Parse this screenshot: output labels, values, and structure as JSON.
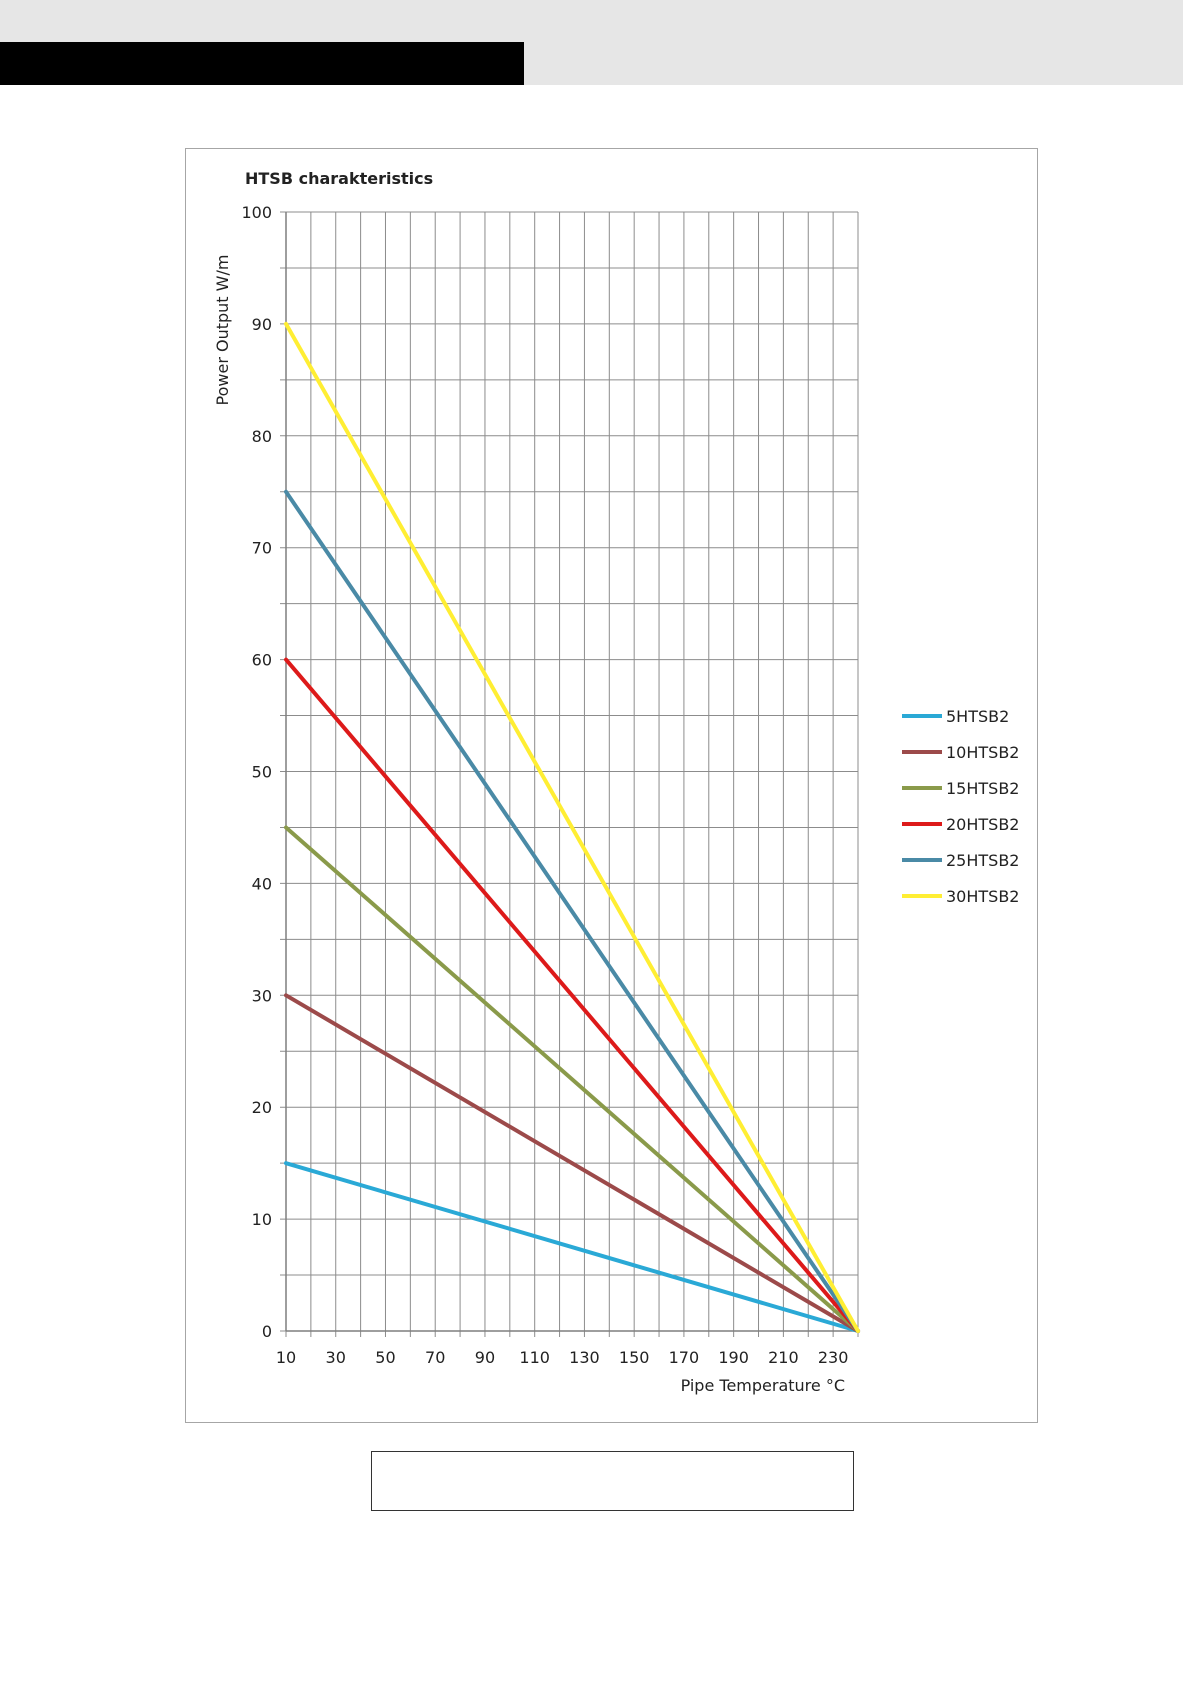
{
  "chart_data": {
    "type": "line",
    "title": "HTSB charakteristics",
    "xlabel": "Pipe Temperature °C",
    "ylabel": "Power Output W/m",
    "xlim": [
      10,
      240
    ],
    "ylim": [
      0,
      100
    ],
    "x_ticks": [
      10,
      30,
      50,
      70,
      90,
      110,
      130,
      150,
      170,
      190,
      210,
      230
    ],
    "y_ticks": [
      0,
      10,
      20,
      30,
      40,
      50,
      60,
      70,
      80,
      90,
      100
    ],
    "x_minor_step": 10,
    "y_minor_step": 5,
    "grid": true,
    "legend_position": "right",
    "series": [
      {
        "name": "5HTSB2",
        "color": "#2aa9d6",
        "x": [
          10,
          240
        ],
        "values": [
          15,
          0
        ]
      },
      {
        "name": "10HTSB2",
        "color": "#9c4a4a",
        "x": [
          10,
          240
        ],
        "values": [
          30,
          0
        ]
      },
      {
        "name": "15HTSB2",
        "color": "#8a9a4a",
        "x": [
          10,
          240
        ],
        "values": [
          45,
          0
        ]
      },
      {
        "name": "20HTSB2",
        "color": "#dd1a1a",
        "x": [
          10,
          240
        ],
        "values": [
          60,
          0
        ]
      },
      {
        "name": "25HTSB2",
        "color": "#4a8aa6",
        "x": [
          10,
          240
        ],
        "values": [
          75,
          0
        ]
      },
      {
        "name": "30HTSB2",
        "color": "#ffee33",
        "x": [
          10,
          240
        ],
        "values": [
          90,
          0
        ]
      }
    ]
  },
  "colors": {
    "grid": "#8c8c8c",
    "frame_border": "#a6a6a6",
    "header_band": "#e6e6e6",
    "header_black": "#000000"
  }
}
